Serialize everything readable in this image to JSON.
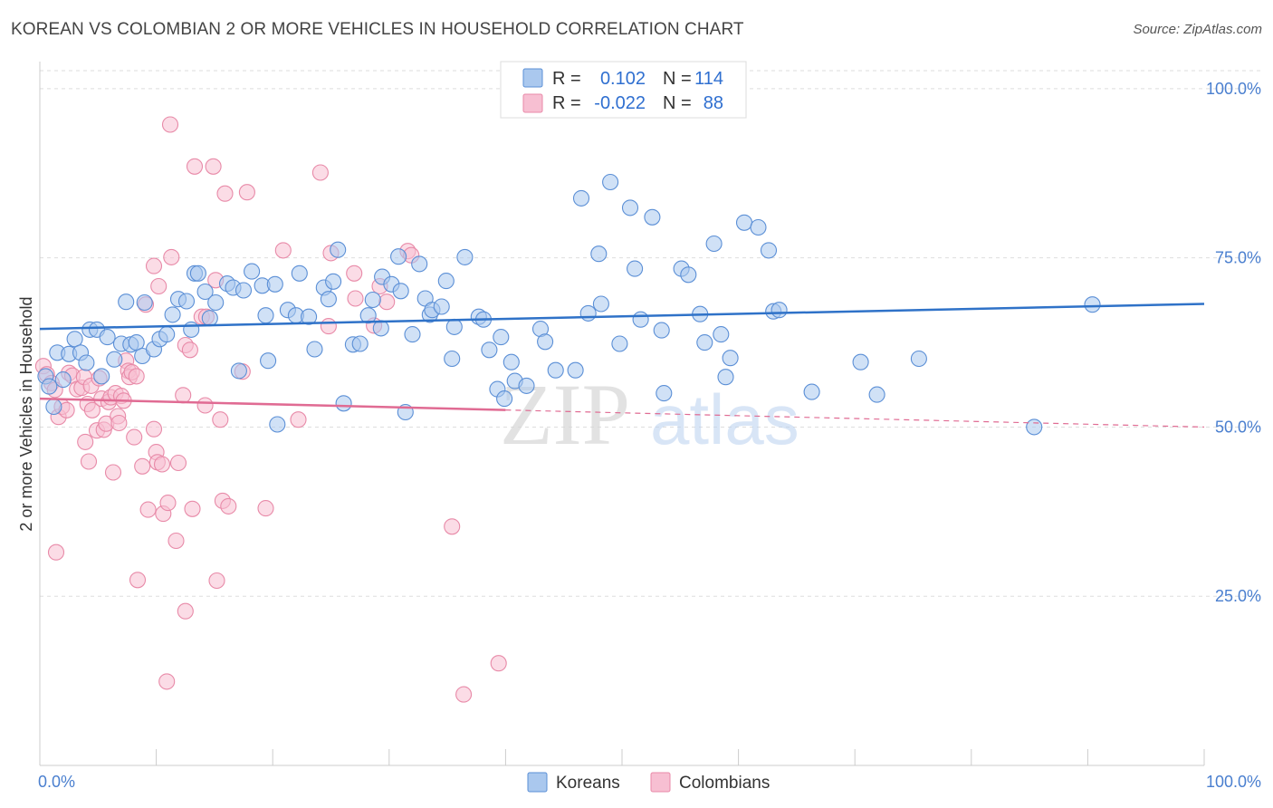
{
  "header": {
    "title": "KOREAN VS COLOMBIAN 2 OR MORE VEHICLES IN HOUSEHOLD CORRELATION CHART",
    "source": "Source: ZipAtlas.com"
  },
  "watermark": {
    "zip": "ZIP",
    "atlas": "atlas"
  },
  "legend": {
    "rows": [
      {
        "r_label": "R =",
        "r_value": "0.102",
        "n_label": "N =",
        "n_value": "114"
      },
      {
        "r_label": "R =",
        "r_value": "-0.022",
        "n_label": "N =",
        "n_value": "88"
      }
    ]
  },
  "colors": {
    "korean_fill": "#aac8ee",
    "korean_stroke": "#5b8fd6",
    "korean_line": "#2f72c8",
    "colombian_fill": "#f7bfd2",
    "colombian_stroke": "#e88aa8",
    "colombian_line": "#e06b93",
    "axis_label": "#4a7fcf",
    "grid": "#dddddd"
  },
  "chart_data": {
    "type": "scatter",
    "title": "KOREAN VS COLOMBIAN 2 OR MORE VEHICLES IN HOUSEHOLD CORRELATION CHART",
    "xlabel": "",
    "ylabel": "2 or more Vehicles in Household",
    "xlim": [
      0,
      100
    ],
    "ylim": [
      0,
      104
    ],
    "x_tick_labels": {
      "left": "0.0%",
      "right": "100.0%"
    },
    "y_ticks": [
      {
        "value": 100,
        "label": "100.0%"
      },
      {
        "value": 75,
        "label": "75.0%"
      },
      {
        "value": 50,
        "label": "50.0%"
      },
      {
        "value": 25,
        "label": "25.0%"
      }
    ],
    "grid": true,
    "legend_position": "top-center",
    "series": [
      {
        "name": "Koreans",
        "r": 0.102,
        "n": 114,
        "trend": {
          "x": [
            0,
            100
          ],
          "y": [
            64.5,
            68.2
          ],
          "dashed_from": null
        },
        "points": [
          [
            0.5,
            57.5
          ],
          [
            0.8,
            56
          ],
          [
            1.2,
            53
          ],
          [
            1.5,
            61
          ],
          [
            2,
            57
          ],
          [
            2.5,
            60.8
          ],
          [
            3,
            63
          ],
          [
            3.5,
            61
          ],
          [
            4,
            59.5
          ],
          [
            4.3,
            64.4
          ],
          [
            4.9,
            64.4
          ],
          [
            5.3,
            57.5
          ],
          [
            5.8,
            63.3
          ],
          [
            6.4,
            60
          ],
          [
            7,
            62.3
          ],
          [
            7.4,
            68.5
          ],
          [
            7.8,
            62.2
          ],
          [
            8.3,
            62.5
          ],
          [
            8.8,
            60.5
          ],
          [
            9,
            68.4
          ],
          [
            9.8,
            61.5
          ],
          [
            10.3,
            63
          ],
          [
            10.9,
            63.7
          ],
          [
            11.4,
            66.6
          ],
          [
            11.9,
            68.9
          ],
          [
            12.6,
            68.6
          ],
          [
            13,
            64.4
          ],
          [
            13.3,
            72.7
          ],
          [
            13.6,
            72.7
          ],
          [
            14.2,
            70
          ],
          [
            14.6,
            66.1
          ],
          [
            15.1,
            68.4
          ],
          [
            16.1,
            71.2
          ],
          [
            16.6,
            70.6
          ],
          [
            17.1,
            58.3
          ],
          [
            17.5,
            70.2
          ],
          [
            18.2,
            73
          ],
          [
            19.1,
            70.9
          ],
          [
            19.4,
            66.5
          ],
          [
            19.6,
            59.8
          ],
          [
            20.2,
            71.1
          ],
          [
            20.4,
            50.4
          ],
          [
            21.3,
            67.3
          ],
          [
            22,
            66.5
          ],
          [
            22.3,
            72.7
          ],
          [
            23.1,
            66.3
          ],
          [
            23.6,
            61.5
          ],
          [
            24.4,
            70.6
          ],
          [
            24.8,
            68.9
          ],
          [
            25.2,
            71.5
          ],
          [
            25.6,
            76.2
          ],
          [
            26.1,
            53.5
          ],
          [
            26.9,
            62.2
          ],
          [
            27.5,
            62.3
          ],
          [
            28.2,
            66.5
          ],
          [
            28.6,
            68.8
          ],
          [
            29.3,
            64.6
          ],
          [
            29.4,
            72.2
          ],
          [
            30.2,
            71.1
          ],
          [
            30.8,
            75.2
          ],
          [
            31,
            70.1
          ],
          [
            31.4,
            52.2
          ],
          [
            32,
            63.7
          ],
          [
            32.6,
            74.1
          ],
          [
            33.1,
            69
          ],
          [
            33.5,
            66.6
          ],
          [
            33.7,
            67.3
          ],
          [
            34.5,
            67.8
          ],
          [
            34.9,
            71.6
          ],
          [
            35.4,
            60.1
          ],
          [
            35.6,
            64.8
          ],
          [
            36.5,
            75.1
          ],
          [
            37.7,
            66.3
          ],
          [
            38.1,
            65.9
          ],
          [
            38.6,
            61.4
          ],
          [
            39.3,
            55.6
          ],
          [
            39.6,
            63.3
          ],
          [
            39.9,
            54.2
          ],
          [
            40.5,
            59.6
          ],
          [
            40.8,
            56.8
          ],
          [
            41.8,
            56.1
          ],
          [
            43,
            64.5
          ],
          [
            43.4,
            62.6
          ],
          [
            44.3,
            58.4
          ],
          [
            46,
            58.4
          ],
          [
            46.5,
            83.8
          ],
          [
            47.1,
            66.8
          ],
          [
            48,
            75.6
          ],
          [
            48.2,
            68.2
          ],
          [
            49,
            86.2
          ],
          [
            49.8,
            62.3
          ],
          [
            50.7,
            82.4
          ],
          [
            51.1,
            73.4
          ],
          [
            51.6,
            65.9
          ],
          [
            52.6,
            81
          ],
          [
            53.4,
            64.3
          ],
          [
            53.6,
            55
          ],
          [
            55.1,
            73.4
          ],
          [
            55.7,
            72.5
          ],
          [
            56.7,
            66.7
          ],
          [
            57.1,
            62.5
          ],
          [
            57.9,
            77.1
          ],
          [
            58.5,
            63.7
          ],
          [
            58.9,
            57.4
          ],
          [
            59.3,
            60.2
          ],
          [
            60.5,
            80.2
          ],
          [
            61.7,
            79.5
          ],
          [
            62.6,
            76.1
          ],
          [
            63,
            67.1
          ],
          [
            63.5,
            67.3
          ],
          [
            66.3,
            55.2
          ],
          [
            70.5,
            59.6
          ],
          [
            71.9,
            54.8
          ],
          [
            75.5,
            60.1
          ],
          [
            85.4,
            50
          ],
          [
            90.4,
            68.1
          ]
        ]
      },
      {
        "name": "Colombians",
        "r": -0.022,
        "n": 88,
        "trend": {
          "x": [
            0,
            100
          ],
          "y": [
            54.2,
            50.0
          ],
          "dashed_from": 40
        },
        "points": [
          [
            0.3,
            59
          ],
          [
            0.6,
            57.8
          ],
          [
            1,
            56.5
          ],
          [
            1.3,
            55.5
          ],
          [
            1.4,
            31.5
          ],
          [
            1.6,
            51.5
          ],
          [
            1.9,
            53
          ],
          [
            2.3,
            52.5
          ],
          [
            2.5,
            58
          ],
          [
            2.8,
            57.6
          ],
          [
            3.2,
            55.6
          ],
          [
            3.6,
            55.8
          ],
          [
            3.8,
            57.4
          ],
          [
            3.9,
            47.8
          ],
          [
            4.1,
            53.4
          ],
          [
            4.2,
            44.9
          ],
          [
            4.4,
            56.1
          ],
          [
            4.5,
            52.5
          ],
          [
            4.9,
            49.5
          ],
          [
            5.1,
            57.2
          ],
          [
            5.3,
            54.2
          ],
          [
            5.5,
            49.6
          ],
          [
            5.7,
            50.5
          ],
          [
            5.9,
            53.7
          ],
          [
            6.1,
            54.4
          ],
          [
            6.3,
            43.3
          ],
          [
            6.5,
            55
          ],
          [
            6.7,
            51.6
          ],
          [
            6.8,
            50.6
          ],
          [
            7,
            54.6
          ],
          [
            7.2,
            53.9
          ],
          [
            7.4,
            59.8
          ],
          [
            7.6,
            58.3
          ],
          [
            7.7,
            57.4
          ],
          [
            7.9,
            58.1
          ],
          [
            8.1,
            48.5
          ],
          [
            8.3,
            57.5
          ],
          [
            8.4,
            27.4
          ],
          [
            8.8,
            44.2
          ],
          [
            9.1,
            68.1
          ],
          [
            9.3,
            37.8
          ],
          [
            9.8,
            73.8
          ],
          [
            9.8,
            49.7
          ],
          [
            10,
            46.3
          ],
          [
            10.1,
            44.8
          ],
          [
            10.2,
            70.8
          ],
          [
            10.5,
            44.5
          ],
          [
            10.6,
            37.2
          ],
          [
            10.9,
            12.4
          ],
          [
            11,
            38.8
          ],
          [
            11.2,
            94.7
          ],
          [
            11.3,
            75.1
          ],
          [
            11.7,
            33.2
          ],
          [
            11.9,
            44.7
          ],
          [
            12.3,
            54.7
          ],
          [
            12.5,
            62.1
          ],
          [
            12.5,
            22.8
          ],
          [
            12.9,
            61.4
          ],
          [
            13.1,
            37.9
          ],
          [
            13.3,
            88.5
          ],
          [
            13.9,
            66.3
          ],
          [
            14.2,
            53.2
          ],
          [
            14.3,
            66.3
          ],
          [
            14.9,
            88.5
          ],
          [
            15.1,
            71.7
          ],
          [
            15.2,
            27.3
          ],
          [
            15.5,
            51.1
          ],
          [
            15.7,
            39.1
          ],
          [
            15.9,
            84.5
          ],
          [
            16.2,
            38.3
          ],
          [
            17.4,
            58.2
          ],
          [
            17.8,
            84.7
          ],
          [
            19.4,
            38
          ],
          [
            20.9,
            76.1
          ],
          [
            22.2,
            51.1
          ],
          [
            24.1,
            87.6
          ],
          [
            24.8,
            64.9
          ],
          [
            25,
            75.7
          ],
          [
            27,
            72.7
          ],
          [
            27.1,
            69
          ],
          [
            28.7,
            65
          ],
          [
            29.2,
            70.8
          ],
          [
            29.8,
            68.5
          ],
          [
            31.6,
            76
          ],
          [
            31.9,
            75.4
          ],
          [
            35.4,
            35.3
          ],
          [
            36.4,
            10.5
          ],
          [
            39.4,
            15.1
          ]
        ]
      }
    ],
    "bottom_legend": [
      {
        "label": "Koreans"
      },
      {
        "label": "Colombians"
      }
    ]
  }
}
